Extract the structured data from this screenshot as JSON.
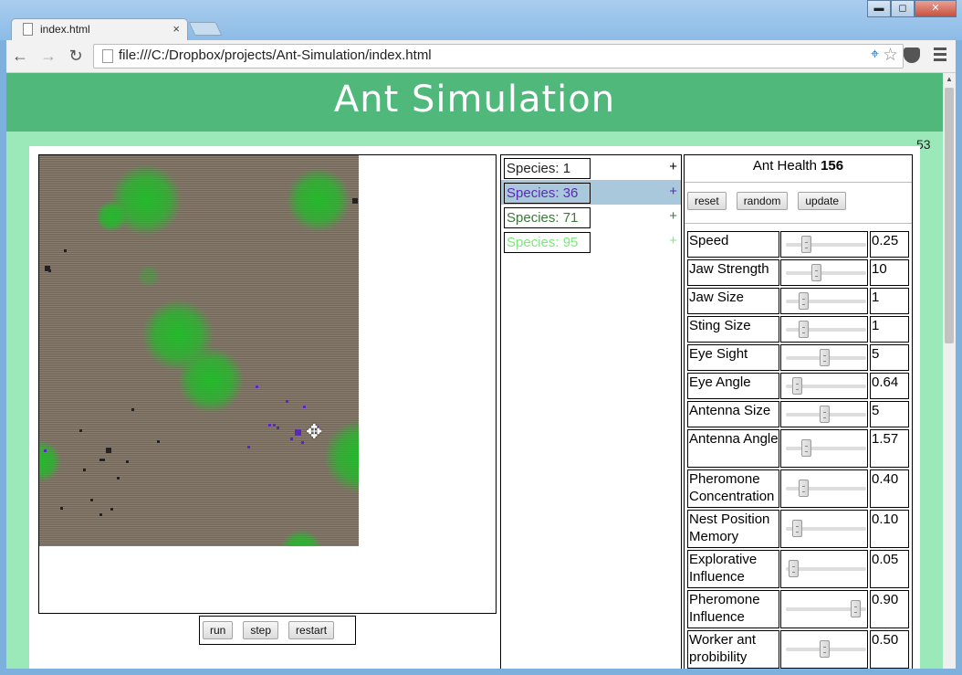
{
  "browser": {
    "tab_title": "index.html",
    "tab_close": "×",
    "url": "file:///C:/Dropbox/projects/Ant-Simulation/index.html",
    "back_icon": "←",
    "forward_icon": "→",
    "reload_icon": "↻",
    "window_buttons": {
      "minimize": "▬",
      "maximize": "◻",
      "close": "✕"
    }
  },
  "page": {
    "title": "Ant Simulation",
    "fps": "53"
  },
  "simulation": {
    "controls": {
      "run": "run",
      "step": "step",
      "restart": "restart"
    },
    "colors": {
      "ground": "#8e7f6a",
      "food": "#1ebe28",
      "species_36": "#5a2ab5"
    }
  },
  "species": [
    {
      "label": "Species: 1",
      "add": "+",
      "color": "#222222",
      "selected": false
    },
    {
      "label": "Species: 36",
      "add": "+",
      "color": "#5a2ab5",
      "selected": true
    },
    {
      "label": "Species: 71",
      "add": "+",
      "color": "#3a7a3a",
      "selected": false
    },
    {
      "label": "Species: 95",
      "add": "+",
      "color": "#7bea7b",
      "selected": false
    }
  ],
  "settings": {
    "health_label": "Ant Health",
    "health_value": "156",
    "buttons": {
      "reset": "reset",
      "random": "random",
      "update": "update"
    },
    "params": [
      {
        "name": "Speed",
        "value": "0.25",
        "slider": 0.25
      },
      {
        "name": "Jaw Strength",
        "value": "10",
        "slider": 0.38
      },
      {
        "name": "Jaw Size",
        "value": "1",
        "slider": 0.22
      },
      {
        "name": "Sting Size",
        "value": "1",
        "slider": 0.22
      },
      {
        "name": "Eye Sight",
        "value": "5",
        "slider": 0.48
      },
      {
        "name": "Eye Angle",
        "value": "0.64",
        "slider": 0.14
      },
      {
        "name": "Antenna Size",
        "value": "5",
        "slider": 0.48
      },
      {
        "name": "Antenna Angle",
        "value": "1.57",
        "slider": 0.25
      },
      {
        "name": "Pheromone Concentration",
        "value": "0.40",
        "slider": 0.22
      },
      {
        "name": "Nest Position Memory",
        "value": "0.10",
        "slider": 0.14
      },
      {
        "name": "Explorative Influence",
        "value": "0.05",
        "slider": 0.09
      },
      {
        "name": "Pheromone Influence",
        "value": "0.90",
        "slider": 0.86
      },
      {
        "name": "Worker ant probibility",
        "value": "0.50",
        "slider": 0.48
      }
    ]
  }
}
